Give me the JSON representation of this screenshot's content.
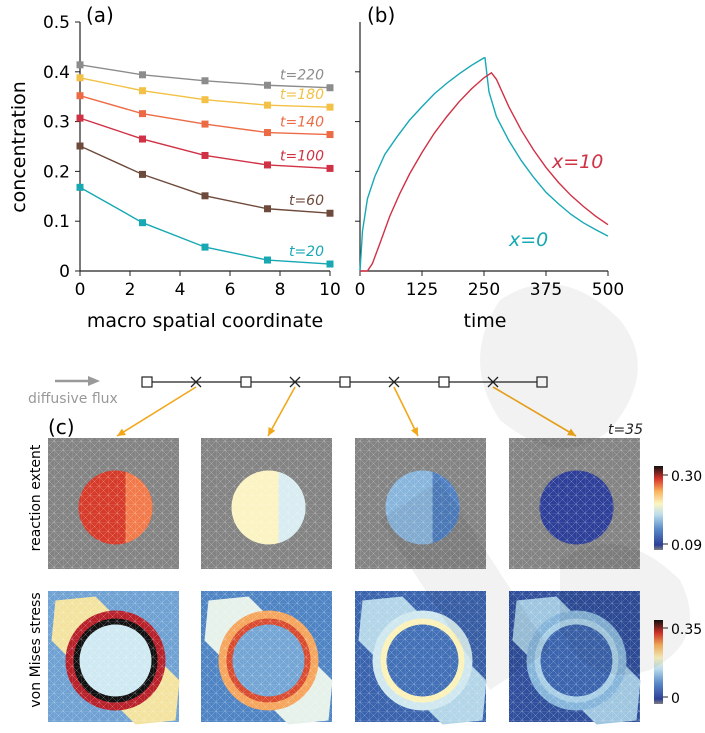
{
  "panel_labels": {
    "a": "(a)",
    "b": "(b)",
    "c": "(c)"
  },
  "colors": {
    "t20": "#17a8b4",
    "t60": "#6e4a3c",
    "t100": "#d03145",
    "t140": "#ec6b45",
    "t180": "#f2c145",
    "t220": "#8c8c8c",
    "x0": "#17a8b4",
    "x10": "#d03145",
    "arrow": "#f2a71b",
    "axis": "#222222"
  },
  "chart_data": [
    {
      "type": "line",
      "panel": "(a)",
      "xlabel": "macro spatial coordinate",
      "ylabel": "concentration",
      "xlim": [
        0,
        10
      ],
      "ylim": [
        0,
        0.5
      ],
      "xticks": [
        "0",
        "2",
        "4",
        "6",
        "8",
        "10"
      ],
      "yticks": [
        "0",
        "0.1",
        "0.2",
        "0.3",
        "0.4",
        "0.5"
      ],
      "x": [
        0,
        2.5,
        5,
        7.5,
        10
      ],
      "series": [
        {
          "name": "t=20",
          "values": [
            0.168,
            0.097,
            0.048,
            0.022,
            0.014
          ]
        },
        {
          "name": "t=60",
          "values": [
            0.251,
            0.194,
            0.151,
            0.125,
            0.116
          ]
        },
        {
          "name": "t=100",
          "values": [
            0.307,
            0.265,
            0.232,
            0.213,
            0.206
          ]
        },
        {
          "name": "t=140",
          "values": [
            0.352,
            0.316,
            0.295,
            0.278,
            0.274
          ]
        },
        {
          "name": "t=180",
          "values": [
            0.388,
            0.362,
            0.344,
            0.333,
            0.329
          ]
        },
        {
          "name": "t=220",
          "values": [
            0.414,
            0.394,
            0.382,
            0.373,
            0.368
          ]
        }
      ]
    },
    {
      "type": "line",
      "panel": "(b)",
      "xlabel": "time",
      "ylabel": "",
      "xlim": [
        0,
        500
      ],
      "ylim": [
        0,
        0.5
      ],
      "xticks": [
        "0",
        "125",
        "250",
        "375",
        "500"
      ],
      "series": [
        {
          "name": "x=0",
          "x": [
            0,
            5,
            15,
            30,
            50,
            75,
            100,
            125,
            150,
            175,
            200,
            225,
            250,
            252,
            260,
            275,
            300,
            325,
            350,
            375,
            400,
            425,
            450,
            475,
            500
          ],
          "values": [
            0,
            0.08,
            0.145,
            0.19,
            0.234,
            0.27,
            0.303,
            0.33,
            0.356,
            0.377,
            0.396,
            0.413,
            0.428,
            0.428,
            0.36,
            0.31,
            0.262,
            0.222,
            0.188,
            0.158,
            0.135,
            0.114,
            0.097,
            0.083,
            0.07
          ]
        },
        {
          "name": "x=10",
          "x": [
            0,
            15,
            25,
            40,
            60,
            80,
            100,
            125,
            150,
            175,
            200,
            225,
            250,
            265,
            275,
            300,
            325,
            350,
            375,
            400,
            425,
            450,
            475,
            500
          ],
          "values": [
            0,
            0,
            0.015,
            0.055,
            0.11,
            0.155,
            0.195,
            0.238,
            0.277,
            0.31,
            0.34,
            0.366,
            0.388,
            0.398,
            0.385,
            0.33,
            0.283,
            0.243,
            0.208,
            0.178,
            0.152,
            0.13,
            0.11,
            0.093
          ]
        }
      ]
    }
  ],
  "flux_label": "diffusive flux",
  "time_label": "t=35",
  "row_labels": {
    "reaction": "reaction extent",
    "stress": "von Mises stress"
  },
  "reaction_colorbar": {
    "max": "0.30",
    "min": "0.09"
  },
  "stress_colorbar": {
    "max": "0.35",
    "min": "0"
  },
  "reaction_maps": [
    {
      "left": "#d63b2a",
      "right": "#f27a4a"
    },
    {
      "left": "#fbf4c2",
      "right": "#d8ecf1"
    },
    {
      "left": "#88b5dc",
      "right": "#4f7fc0"
    },
    {
      "left": "#2d3f98",
      "right": "#2d3f98"
    }
  ],
  "stress_maps": [
    {
      "disc": "#cfe9f2",
      "edge": "#111111",
      "ring": "#b8202a",
      "bg1": "#6fa1d2",
      "bg2": "#f3e39f"
    },
    {
      "disc": "#73a5d5",
      "edge": "#d94b2f",
      "ring": "#f6a55c",
      "bg1": "#4f84c4",
      "bg2": "#e6f1ea"
    },
    {
      "disc": "#4270b7",
      "edge": "#fbf2b9",
      "ring": "#cfe7ef",
      "bg1": "#3a63ad",
      "bg2": "#b2d5e8"
    },
    {
      "disc": "#3b64ae",
      "edge": "#a8cfe6",
      "ring": "#85b4da",
      "bg1": "#2f4f9c",
      "bg2": "#9fc6e0"
    }
  ]
}
